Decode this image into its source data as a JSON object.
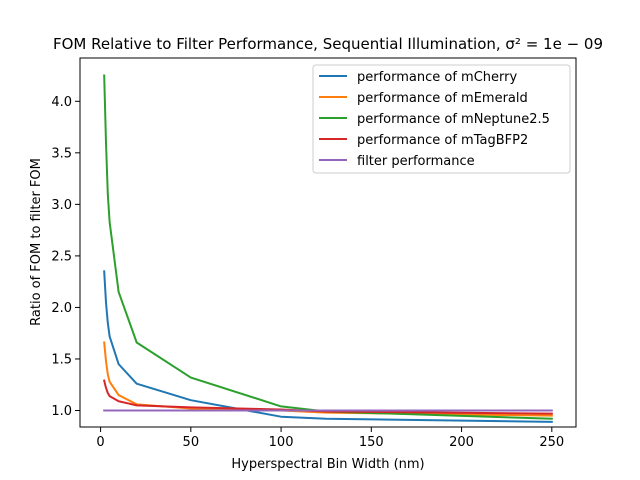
{
  "chart_data": {
    "type": "line",
    "title": "FOM Relative to Filter Performance, Sequential Illumination, σ² = 1e − 09",
    "xlabel": "Hyperspectral Bin Width (nm)",
    "ylabel": "Ratio of FOM to filter FOM",
    "xlim": [
      -11.4,
      263.4
    ],
    "ylim": [
      0.84,
      4.42
    ],
    "xticks": [
      0,
      50,
      100,
      150,
      200,
      250
    ],
    "yticks": [
      1.0,
      1.5,
      2.0,
      2.5,
      3.0,
      3.5,
      4.0
    ],
    "ytick_labels": [
      "1.0",
      "1.5",
      "2.0",
      "2.5",
      "3.0",
      "3.5",
      "4.0"
    ],
    "grid": false,
    "legend_position": "upper right",
    "x": [
      2,
      3,
      4,
      5,
      10,
      20,
      50,
      100,
      125,
      250
    ],
    "series": [
      {
        "name": "performance of mCherry",
        "color": "#1f77b4",
        "values": [
          2.35,
          2.05,
          1.85,
          1.72,
          1.45,
          1.26,
          1.1,
          0.94,
          0.92,
          0.89
        ]
      },
      {
        "name": "performance of mEmerald",
        "color": "#ff7f0e",
        "values": [
          1.66,
          1.48,
          1.35,
          1.28,
          1.15,
          1.06,
          1.02,
          1.0,
          0.98,
          0.95
        ]
      },
      {
        "name": "performance of mNeptune2.5",
        "color": "#2ca02c",
        "values": [
          4.25,
          3.6,
          3.1,
          2.83,
          2.15,
          1.66,
          1.32,
          1.04,
          0.99,
          0.92
        ]
      },
      {
        "name": "performance of mTagBFP2",
        "color": "#d62728",
        "values": [
          1.29,
          1.22,
          1.17,
          1.14,
          1.09,
          1.05,
          1.03,
          1.01,
          0.99,
          0.97
        ]
      },
      {
        "name": "filter performance",
        "color": "#9467bd",
        "values": [
          1.0,
          1.0,
          1.0,
          1.0,
          1.0,
          1.0,
          1.0,
          1.0,
          1.0,
          1.0
        ]
      }
    ]
  }
}
